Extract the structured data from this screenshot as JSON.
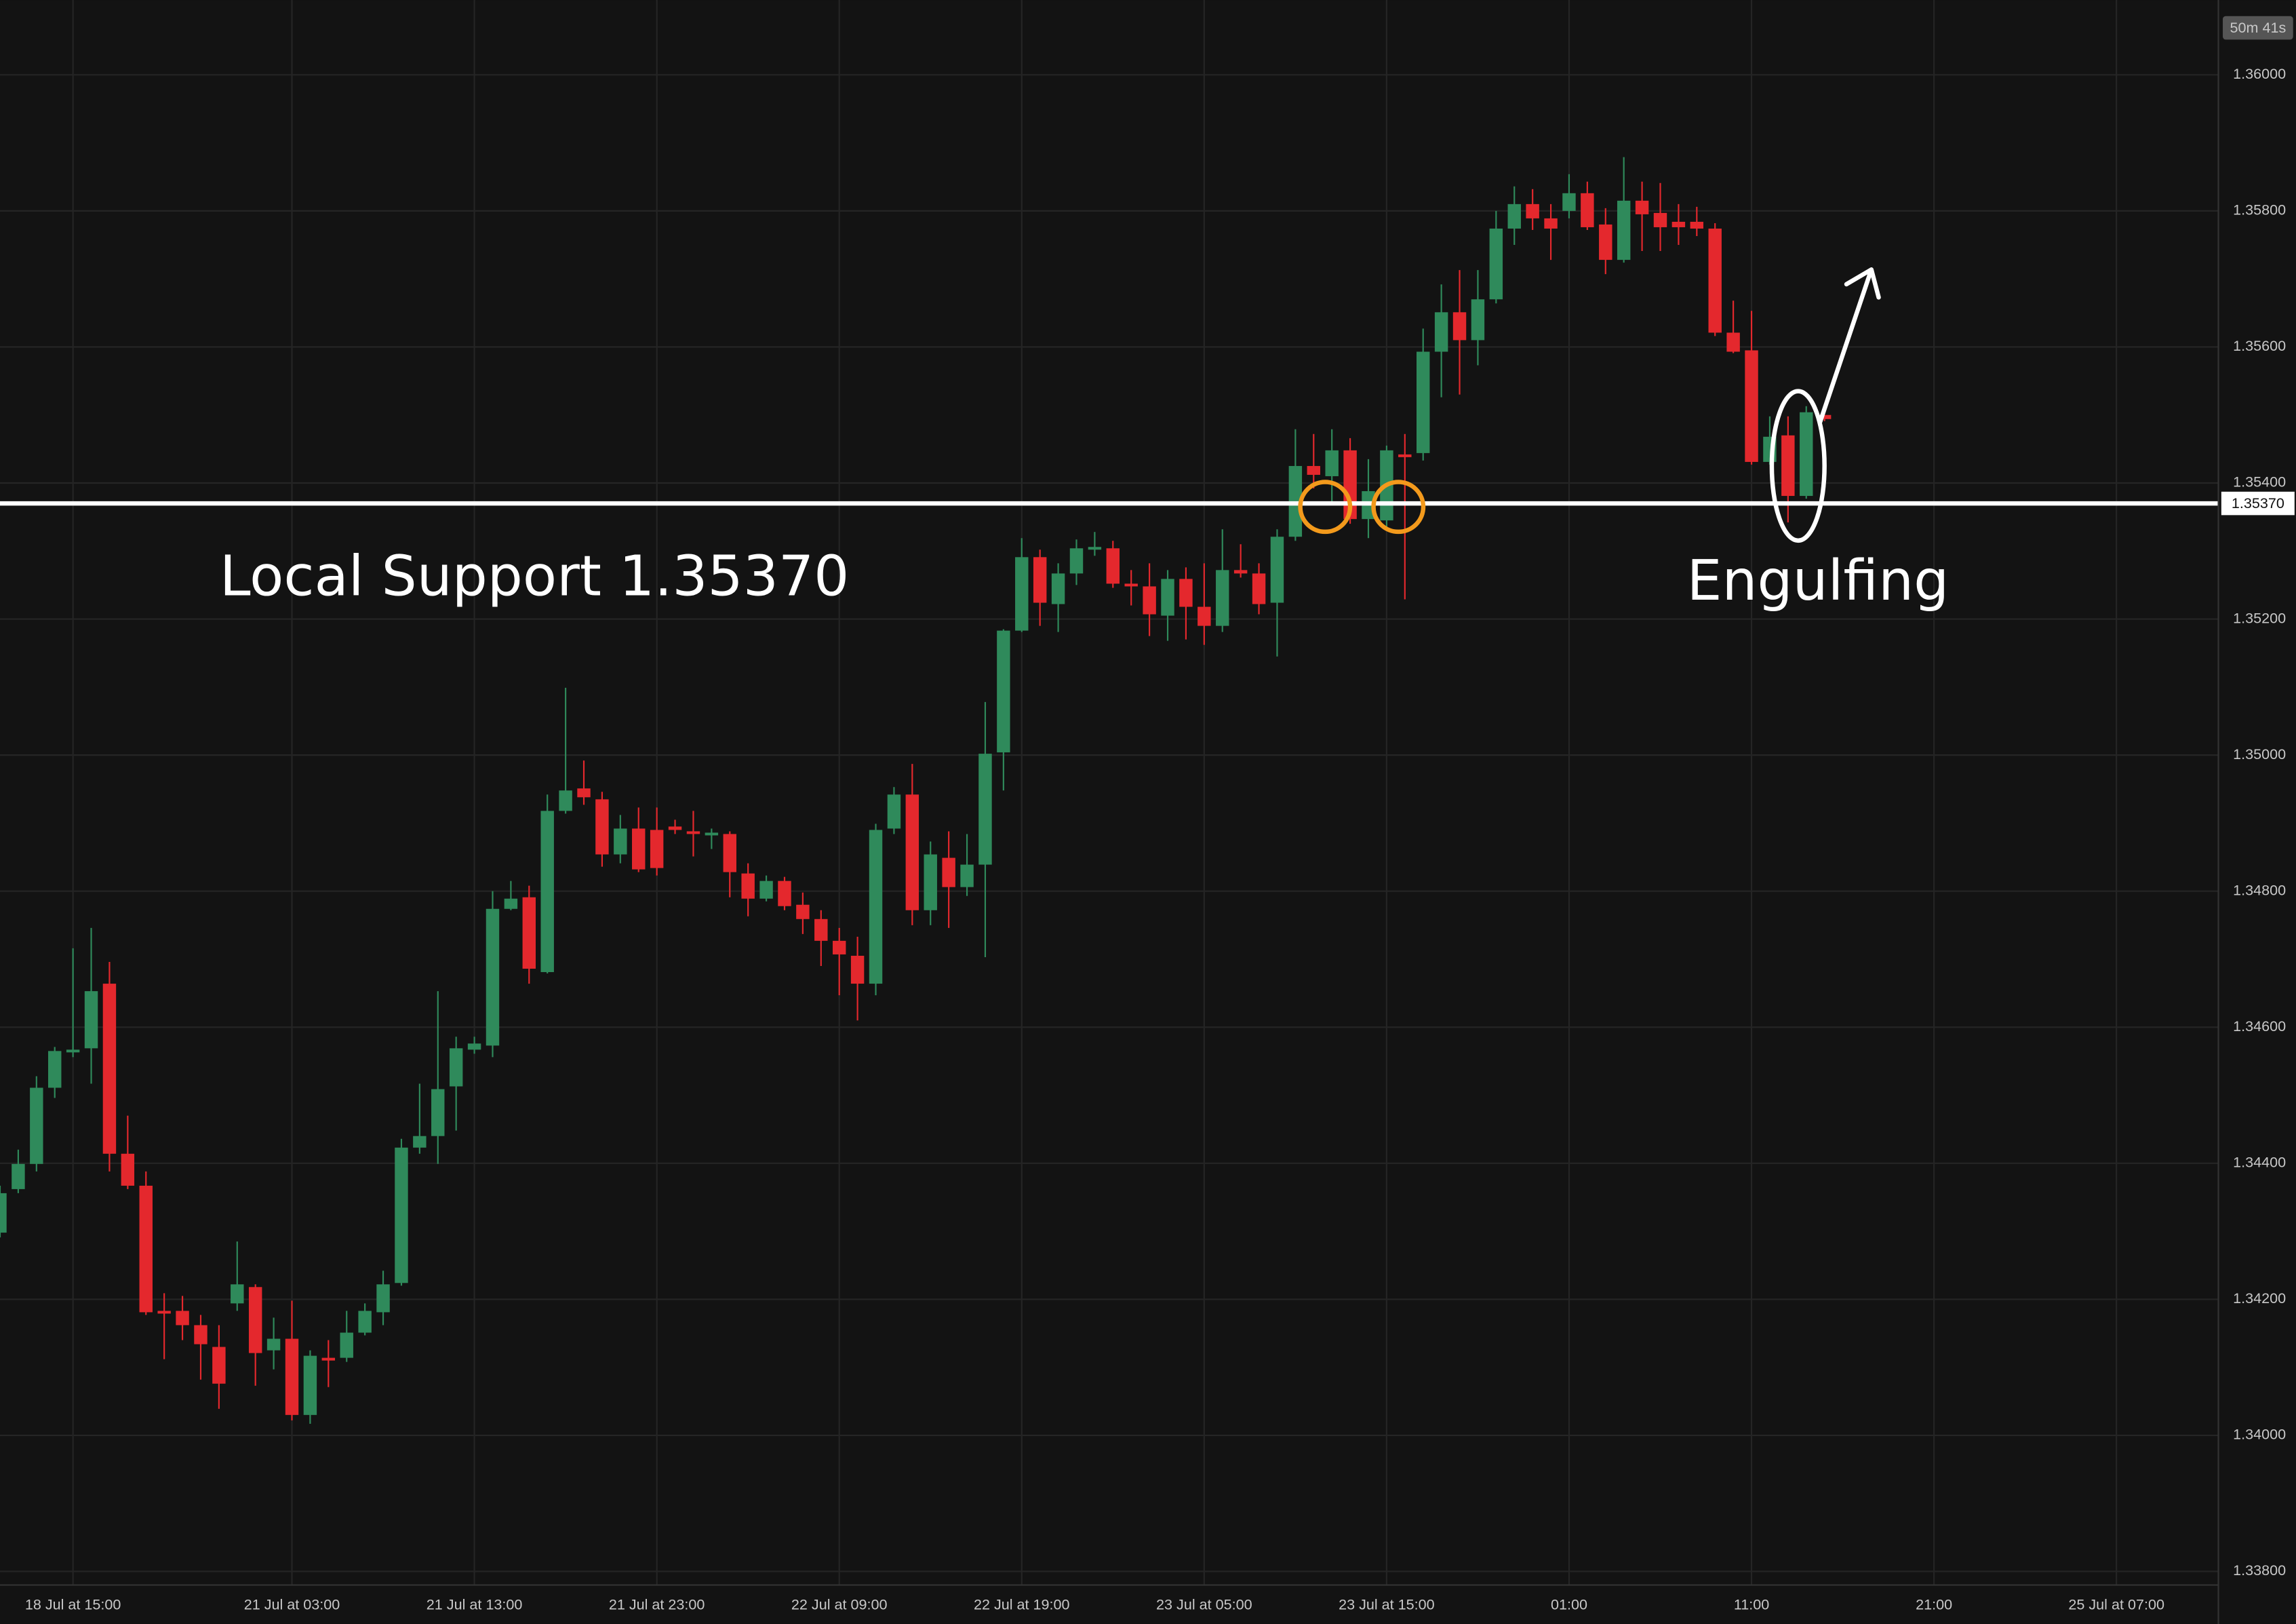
{
  "chart_data": {
    "type": "candlestick",
    "categories": [
      null,
      null,
      null,
      null,
      "18 Jul at 15:00",
      null,
      null,
      null,
      null,
      null,
      null,
      null,
      null,
      null,
      null,
      null,
      "21 Jul at 03:00",
      null,
      null,
      null,
      null,
      null,
      null,
      null,
      null,
      null,
      "21 Jul at 13:00",
      null,
      null,
      null,
      null,
      null,
      null,
      null,
      null,
      null,
      "21 Jul at 23:00",
      null,
      null,
      null,
      null,
      null,
      null,
      null,
      null,
      null,
      "22 Jul at 09:00",
      null,
      null,
      null,
      null,
      null,
      null,
      null,
      null,
      null,
      "22 Jul at 19:00",
      null,
      null,
      null,
      null,
      null,
      null,
      null,
      null,
      null,
      "23 Jul at 05:00",
      null,
      null,
      null,
      null,
      null,
      null,
      null,
      null,
      null,
      "23 Jul at 15:00",
      null,
      null,
      null,
      null,
      null,
      null,
      null,
      null,
      null,
      "01:00",
      null,
      null,
      null,
      null,
      null,
      null,
      null,
      null,
      null,
      "11:00",
      null,
      null,
      null,
      null,
      null,
      null,
      null,
      null,
      null,
      "21:00",
      null,
      null,
      null,
      null,
      null,
      null,
      null,
      null,
      null,
      "25 Jul at 07:00",
      null,
      null,
      null,
      null,
      null
    ],
    "open": [
      1.34298,
      1.34362,
      1.34399,
      1.34511,
      1.34563,
      1.34569,
      1.34664,
      1.34414,
      1.34367,
      1.34183,
      1.34183,
      1.34162,
      1.3413,
      1.34194,
      1.34218,
      1.34125,
      1.34142,
      1.3403,
      1.34114,
      1.34114,
      1.34151,
      1.34181,
      1.34224,
      1.34423,
      1.3444,
      1.34513,
      1.34567,
      1.34573,
      1.34774,
      1.34791,
      1.34681,
      1.34918,
      1.34951,
      1.34935,
      1.34854,
      1.34892,
      1.3489,
      1.34895,
      1.34888,
      1.34882,
      1.34884,
      1.34826,
      1.34789,
      1.34815,
      1.3478,
      1.34759,
      1.34727,
      1.34705,
      1.34664,
      1.34892,
      1.34942,
      1.34772,
      1.34849,
      1.34806,
      1.34839,
      1.35004,
      1.35183,
      1.35291,
      1.35222,
      1.35267,
      1.35302,
      1.35304,
      1.35252,
      1.35248,
      1.35205,
      1.35259,
      1.35218,
      1.3519,
      1.35272,
      1.35267,
      1.35224,
      1.35321,
      1.35425,
      1.3541,
      1.35448,
      1.35347,
      1.35345,
      1.35442,
      1.35444,
      1.35593,
      1.35651,
      1.3561,
      1.3567,
      1.35774,
      1.3581,
      1.35789,
      1.358,
      1.35826,
      1.3578,
      1.35728,
      1.35815,
      1.35797,
      1.35784,
      1.35784,
      1.35774,
      1.35621,
      1.35595,
      1.35431,
      1.3547,
      1.35381,
      1.355,
      null,
      null,
      null,
      null,
      null,
      null,
      null,
      null,
      null,
      null,
      null,
      null,
      null,
      null,
      null,
      null,
      null,
      null,
      null,
      null,
      null
    ],
    "high": [
      1.34367,
      1.3442,
      1.34528,
      1.34571,
      1.34716,
      1.34746,
      1.34696,
      1.3447,
      1.34388,
      1.34209,
      1.34205,
      1.34177,
      1.34162,
      1.34285,
      1.34222,
      1.34173,
      1.34198,
      1.34125,
      1.3414,
      1.34183,
      1.34194,
      1.34242,
      1.34436,
      1.34517,
      1.34653,
      1.34586,
      1.34586,
      1.348,
      1.34815,
      1.34808,
      1.34942,
      1.35099,
      1.34992,
      1.34946,
      1.34912,
      1.34923,
      1.34923,
      1.34905,
      1.34918,
      1.34892,
      1.34888,
      1.34841,
      1.34823,
      1.34821,
      1.34798,
      1.34772,
      1.34746,
      1.34733,
      1.34899,
      1.34953,
      1.34987,
      1.34873,
      1.34888,
      1.34884,
      1.35078,
      1.35185,
      1.35319,
      1.35302,
      1.35282,
      1.35317,
      1.35328,
      1.35315,
      1.35272,
      1.35282,
      1.35272,
      1.35276,
      1.35282,
      1.35332,
      1.3531,
      1.35282,
      1.35332,
      1.35479,
      1.35472,
      1.35479,
      1.35466,
      1.35435,
      1.35455,
      1.35472,
      1.35627,
      1.35692,
      1.35713,
      1.35713,
      1.358,
      1.35836,
      1.35832,
      1.3581,
      1.35854,
      1.35843,
      1.35804,
      1.35879,
      1.35843,
      1.35841,
      1.3581,
      1.35806,
      1.35782,
      1.35668,
      1.35653,
      1.35498,
      1.35498,
      1.35513,
      1.355,
      null,
      null,
      null,
      null,
      null,
      null,
      null,
      null,
      null,
      null,
      null,
      null,
      null,
      null,
      null,
      null,
      null,
      null,
      null,
      null,
      null
    ],
    "low": [
      1.34291,
      1.34356,
      1.34388,
      1.34496,
      1.34556,
      1.34517,
      1.34388,
      1.34362,
      1.34177,
      1.34112,
      1.3414,
      1.34082,
      1.34039,
      1.34183,
      1.34073,
      1.34097,
      1.34022,
      1.34017,
      1.34071,
      1.34108,
      1.34147,
      1.34162,
      1.3422,
      1.34414,
      1.34399,
      1.34448,
      1.34561,
      1.34556,
      1.34772,
      1.34664,
      1.34679,
      1.34914,
      1.34927,
      1.34836,
      1.34841,
      1.34828,
      1.34823,
      1.34884,
      1.34851,
      1.34862,
      1.34791,
      1.34763,
      1.34785,
      1.34772,
      1.34737,
      1.3469,
      1.34647,
      1.3461,
      1.34647,
      1.34884,
      1.3475,
      1.3475,
      1.34746,
      1.34793,
      1.34703,
      1.34948,
      1.35181,
      1.3519,
      1.35181,
      1.3525,
      1.35293,
      1.35246,
      1.3522,
      1.35175,
      1.35168,
      1.3517,
      1.35162,
      1.35181,
      1.35261,
      1.35207,
      1.35145,
      1.35315,
      1.35392,
      1.35368,
      1.3534,
      1.35319,
      1.35332,
      1.35229,
      1.35433,
      1.35526,
      1.3553,
      1.35573,
      1.35664,
      1.3575,
      1.35772,
      1.35728,
      1.35789,
      1.35772,
      1.35707,
      1.35724,
      1.35741,
      1.35741,
      1.3575,
      1.35763,
      1.35616,
      1.35591,
      1.35427,
      1.35427,
      1.35342,
      1.35377,
      1.35491,
      null,
      null,
      null,
      null,
      null,
      null,
      null,
      null,
      null,
      null,
      null,
      null,
      null,
      null,
      null,
      null,
      null,
      null,
      null,
      null,
      null
    ],
    "close": [
      1.34356,
      1.34399,
      1.34511,
      1.34565,
      1.34567,
      1.34653,
      1.34414,
      1.34367,
      1.34181,
      1.34179,
      1.34162,
      1.34134,
      1.34076,
      1.34222,
      1.34121,
      1.34142,
      1.3403,
      1.34117,
      1.3411,
      1.34151,
      1.34183,
      1.34222,
      1.34423,
      1.3444,
      1.34509,
      1.34569,
      1.34576,
      1.34774,
      1.34789,
      1.34686,
      1.34918,
      1.34948,
      1.34938,
      1.34854,
      1.34892,
      1.34832,
      1.34834,
      1.3489,
      1.34884,
      1.34886,
      1.34828,
      1.34789,
      1.34815,
      1.34778,
      1.34759,
      1.34727,
      1.34707,
      1.34664,
      1.3489,
      1.34942,
      1.34772,
      1.34854,
      1.34806,
      1.34839,
      1.35002,
      1.35183,
      1.35291,
      1.35224,
      1.35267,
      1.35304,
      1.35306,
      1.35252,
      1.35248,
      1.35207,
      1.35259,
      1.35218,
      1.3519,
      1.35272,
      1.35267,
      1.35222,
      1.35321,
      1.35425,
      1.35412,
      1.35448,
      1.35347,
      1.35388,
      1.35448,
      1.35438,
      1.35593,
      1.35651,
      1.3561,
      1.3567,
      1.35774,
      1.3581,
      1.35789,
      1.35774,
      1.35826,
      1.35776,
      1.35728,
      1.35815,
      1.35795,
      1.35776,
      1.35776,
      1.35774,
      1.35621,
      1.35593,
      1.35431,
      1.35468,
      1.35381,
      1.35504,
      1.35494,
      null,
      null,
      null,
      null,
      null,
      null,
      null,
      null,
      null,
      null,
      null,
      null,
      null,
      null,
      null,
      null,
      null,
      null,
      null,
      null,
      null
    ],
    "up_color": "#2f8a5b",
    "down_color": "#e4282d",
    "ylim": [
      1.3378,
      1.3611
    ],
    "yticks": [
      {
        "value": 1.338,
        "label": "1.33800"
      },
      {
        "value": 1.34,
        "label": "1.34000"
      },
      {
        "value": 1.342,
        "label": "1.34200"
      },
      {
        "value": 1.344,
        "label": "1.34400"
      },
      {
        "value": 1.346,
        "label": "1.34600"
      },
      {
        "value": 1.348,
        "label": "1.34800"
      },
      {
        "value": 1.35,
        "label": "1.35000"
      },
      {
        "value": 1.352,
        "label": "1.35200"
      },
      {
        "value": 1.354,
        "label": "1.35400"
      },
      {
        "value": 1.356,
        "label": "1.35600"
      },
      {
        "value": 1.358,
        "label": "1.35800"
      },
      {
        "value": 1.36,
        "label": "1.36000"
      }
    ],
    "grid": true,
    "support_level": {
      "value": 1.3537,
      "label": "1.35370"
    },
    "countdown": "50m 41s",
    "annotations": [
      "Local Support 1.35370",
      "Engulfing"
    ]
  }
}
